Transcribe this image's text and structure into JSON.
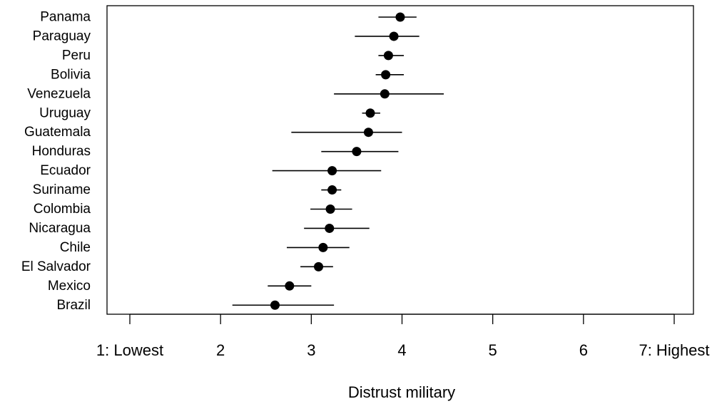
{
  "chart_data": {
    "type": "scatter",
    "subtype": "dot-and-whisker",
    "title": "",
    "xlabel": "Distrust military",
    "ylabel": "",
    "xlim": [
      1,
      7
    ],
    "x_ticks": [
      {
        "value": 1,
        "label": "1: Lowest"
      },
      {
        "value": 2,
        "label": "2"
      },
      {
        "value": 3,
        "label": "3"
      },
      {
        "value": 4,
        "label": "4"
      },
      {
        "value": 5,
        "label": "5"
      },
      {
        "value": 6,
        "label": "6"
      },
      {
        "value": 7,
        "label": "7: Highest"
      }
    ],
    "grid": false,
    "legend": "none",
    "colors": {
      "points": "#000000",
      "lines": "#000000"
    },
    "categories": [
      "Panama",
      "Paraguay",
      "Peru",
      "Bolivia",
      "Venezuela",
      "Uruguay",
      "Guatemala",
      "Honduras",
      "Ecuador",
      "Suriname",
      "Colombia",
      "Nicaragua",
      "Chile",
      "El Salvador",
      "Mexico",
      "Brazil"
    ],
    "points": [
      {
        "country": "Panama",
        "estimate": 3.98,
        "lower": 3.74,
        "upper": 4.16
      },
      {
        "country": "Paraguay",
        "estimate": 3.91,
        "lower": 3.48,
        "upper": 4.19
      },
      {
        "country": "Peru",
        "estimate": 3.85,
        "lower": 3.74,
        "upper": 4.02
      },
      {
        "country": "Bolivia",
        "estimate": 3.82,
        "lower": 3.71,
        "upper": 4.02
      },
      {
        "country": "Venezuela",
        "estimate": 3.81,
        "lower": 3.25,
        "upper": 4.46
      },
      {
        "country": "Uruguay",
        "estimate": 3.65,
        "lower": 3.56,
        "upper": 3.76
      },
      {
        "country": "Guatemala",
        "estimate": 3.63,
        "lower": 2.78,
        "upper": 4.0
      },
      {
        "country": "Honduras",
        "estimate": 3.5,
        "lower": 3.11,
        "upper": 3.96
      },
      {
        "country": "Ecuador",
        "estimate": 3.23,
        "lower": 2.57,
        "upper": 3.77
      },
      {
        "country": "Suriname",
        "estimate": 3.23,
        "lower": 3.11,
        "upper": 3.33
      },
      {
        "country": "Colombia",
        "estimate": 3.21,
        "lower": 2.99,
        "upper": 3.45
      },
      {
        "country": "Nicaragua",
        "estimate": 3.2,
        "lower": 2.92,
        "upper": 3.64
      },
      {
        "country": "Chile",
        "estimate": 3.13,
        "lower": 2.73,
        "upper": 3.42
      },
      {
        "country": "El Salvador",
        "estimate": 3.08,
        "lower": 2.88,
        "upper": 3.24
      },
      {
        "country": "Mexico",
        "estimate": 2.76,
        "lower": 2.52,
        "upper": 3.0
      },
      {
        "country": "Brazil",
        "estimate": 2.6,
        "lower": 2.13,
        "upper": 3.25
      }
    ]
  }
}
